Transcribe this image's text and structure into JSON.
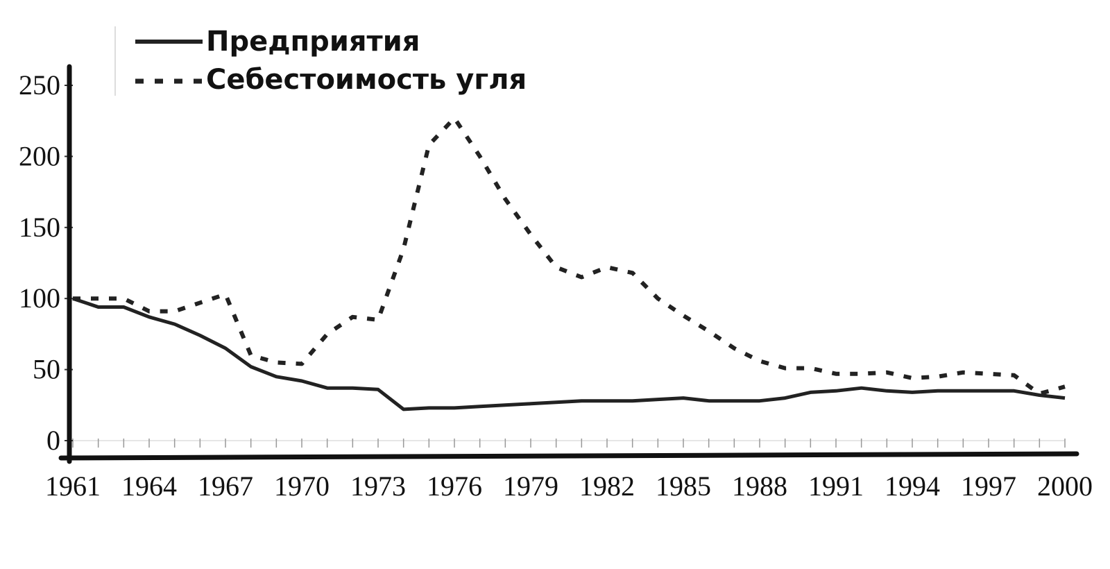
{
  "chart_data": {
    "type": "line",
    "title": "",
    "xlabel": "",
    "ylabel": "",
    "x": [
      1961,
      1962,
      1963,
      1964,
      1965,
      1966,
      1967,
      1968,
      1969,
      1970,
      1971,
      1972,
      1973,
      1974,
      1975,
      1976,
      1977,
      1978,
      1979,
      1980,
      1981,
      1982,
      1983,
      1984,
      1985,
      1986,
      1987,
      1988,
      1989,
      1990,
      1991,
      1992,
      1993,
      1994,
      1995,
      1996,
      1997,
      1998,
      1999,
      2000
    ],
    "xticks": [
      "1961",
      "1964",
      "1967",
      "1970",
      "1973",
      "1976",
      "1979",
      "1982",
      "1985",
      "1988",
      "1991",
      "1994",
      "1997",
      "2000"
    ],
    "yticks": [
      "0",
      "50",
      "100",
      "150",
      "200",
      "250"
    ],
    "ylim": [
      0,
      250
    ],
    "grid": false,
    "legend_position": "top-left",
    "series": [
      {
        "name": "Предприятия",
        "style": "solid",
        "values": [
          100,
          94,
          94,
          87,
          82,
          74,
          65,
          52,
          45,
          42,
          37,
          37,
          36,
          22,
          23,
          23,
          24,
          25,
          26,
          27,
          28,
          28,
          28,
          29,
          30,
          28,
          28,
          28,
          30,
          34,
          35,
          37,
          35,
          34,
          35,
          35,
          35,
          35,
          32,
          30
        ]
      },
      {
        "name": "Себестоимость угля",
        "style": "dotted",
        "values": [
          100,
          100,
          100,
          91,
          91,
          97,
          103,
          60,
          55,
          54,
          75,
          87,
          85,
          135,
          208,
          227,
          200,
          170,
          145,
          122,
          115,
          122,
          118,
          100,
          88,
          77,
          65,
          56,
          51,
          51,
          47,
          47,
          48,
          44,
          45,
          48,
          47,
          46,
          33,
          38
        ]
      }
    ],
    "colors": {
      "line": "#222222",
      "axis": "#111111",
      "tick": "#999999"
    }
  }
}
